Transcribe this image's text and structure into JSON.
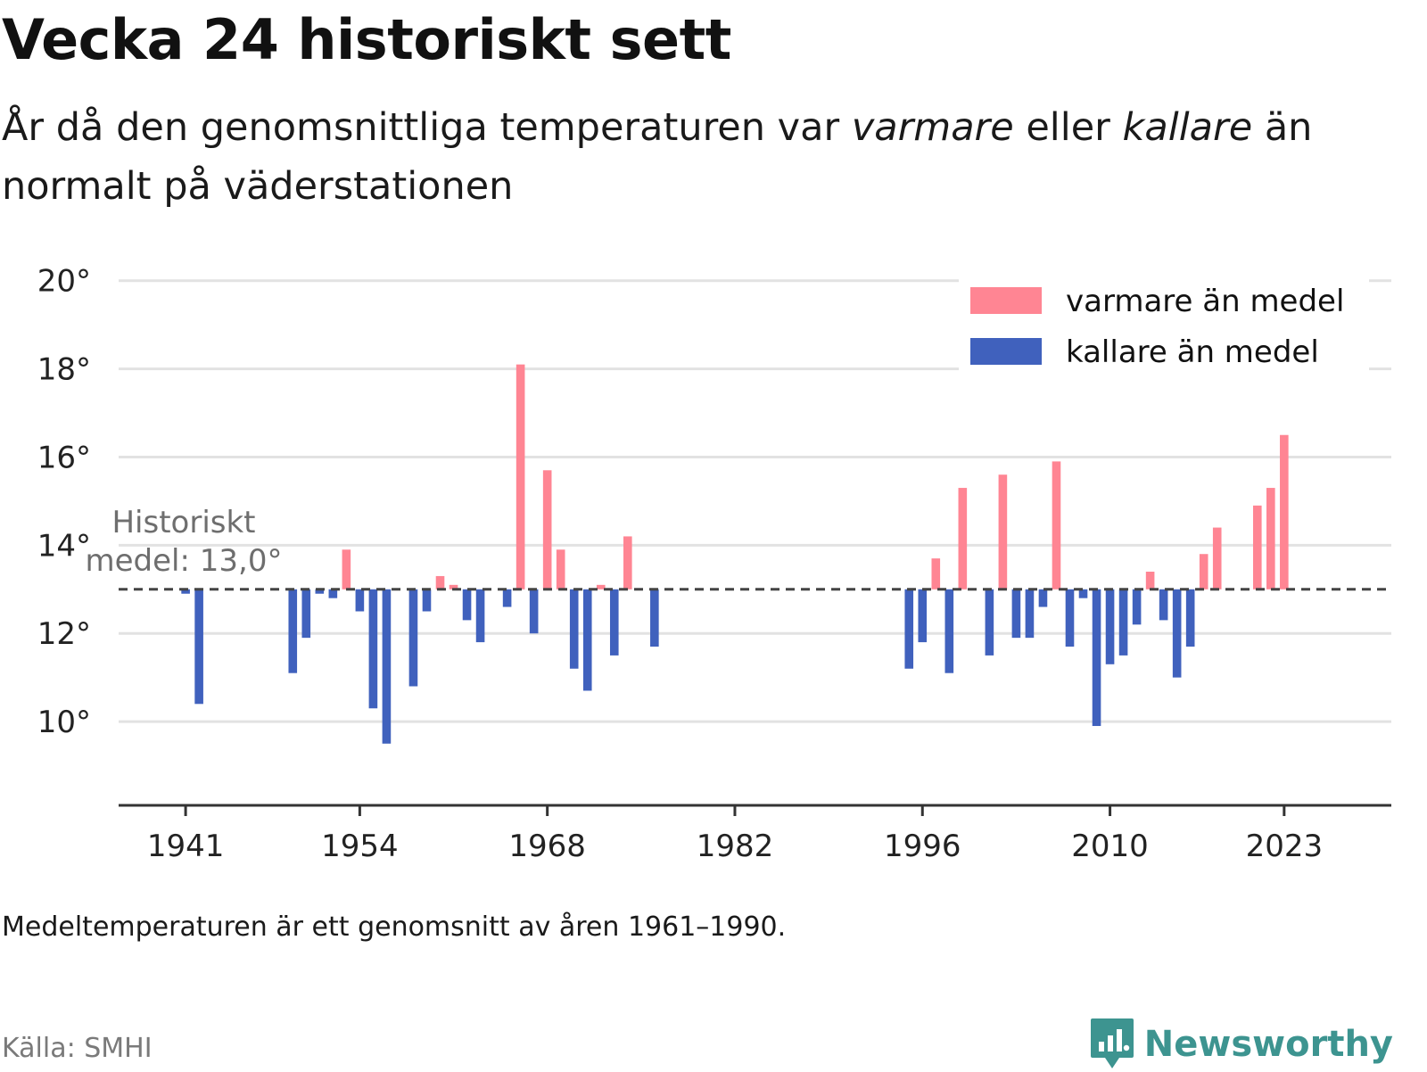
{
  "title": "Vecka 24 historiskt sett",
  "subtitle": {
    "part1": "År då den genomsnittliga temperaturen var ",
    "warm_word": "varmare",
    "part2": " eller ",
    "cold_word": "kallare",
    "part3": " än normalt på väderstationen"
  },
  "footnote": "Medeltemperaturen är ett genomsnitt av åren 1961–1990.",
  "source": "Källa: SMHI",
  "brand": {
    "name": "Newsworthy",
    "color": "#3d9490",
    "icon": "newsworthy-logo-icon"
  },
  "chart_data": {
    "type": "bar",
    "baseline": 13.0,
    "baseline_label_line1": "Historiskt",
    "baseline_label_line2": "medel: 13,0°",
    "xlim": [
      1936,
      2031
    ],
    "ylim": [
      8.1,
      20.5
    ],
    "y_ticks": [
      10,
      12,
      14,
      16,
      18,
      20
    ],
    "y_tick_suffix": "°",
    "x_ticks": [
      1941,
      1954,
      1968,
      1982,
      1996,
      2010,
      2023
    ],
    "grid": true,
    "legend_position": "top-right",
    "colors": {
      "warm": "#ff8593",
      "cold": "#4061bd",
      "baseline": "#444444",
      "grid": "#e2e2e2",
      "axis": "#333333"
    },
    "legend": [
      {
        "key": "warm",
        "label": "varmare än medel"
      },
      {
        "key": "cold",
        "label": "kallare än medel"
      }
    ],
    "points": [
      {
        "year": 1941,
        "value": 12.9
      },
      {
        "year": 1942,
        "value": 10.4
      },
      {
        "year": 1949,
        "value": 11.1
      },
      {
        "year": 1950,
        "value": 11.9
      },
      {
        "year": 1951,
        "value": 12.9
      },
      {
        "year": 1952,
        "value": 12.8
      },
      {
        "year": 1953,
        "value": 13.9
      },
      {
        "year": 1954,
        "value": 12.5
      },
      {
        "year": 1955,
        "value": 10.3
      },
      {
        "year": 1956,
        "value": 9.5
      },
      {
        "year": 1958,
        "value": 10.8
      },
      {
        "year": 1959,
        "value": 12.5
      },
      {
        "year": 1960,
        "value": 13.3
      },
      {
        "year": 1961,
        "value": 13.1
      },
      {
        "year": 1962,
        "value": 12.3
      },
      {
        "year": 1963,
        "value": 11.8
      },
      {
        "year": 1965,
        "value": 12.6
      },
      {
        "year": 1966,
        "value": 18.1
      },
      {
        "year": 1967,
        "value": 12.0
      },
      {
        "year": 1968,
        "value": 15.7
      },
      {
        "year": 1969,
        "value": 13.9
      },
      {
        "year": 1970,
        "value": 11.2
      },
      {
        "year": 1971,
        "value": 10.7
      },
      {
        "year": 1972,
        "value": 13.1
      },
      {
        "year": 1973,
        "value": 11.5
      },
      {
        "year": 1974,
        "value": 14.2
      },
      {
        "year": 1976,
        "value": 11.7
      },
      {
        "year": 1995,
        "value": 11.2
      },
      {
        "year": 1996,
        "value": 11.8
      },
      {
        "year": 1997,
        "value": 13.7
      },
      {
        "year": 1998,
        "value": 11.1
      },
      {
        "year": 1999,
        "value": 15.3
      },
      {
        "year": 2001,
        "value": 11.5
      },
      {
        "year": 2002,
        "value": 15.6
      },
      {
        "year": 2003,
        "value": 11.9
      },
      {
        "year": 2004,
        "value": 11.9
      },
      {
        "year": 2005,
        "value": 12.6
      },
      {
        "year": 2006,
        "value": 15.9
      },
      {
        "year": 2007,
        "value": 11.7
      },
      {
        "year": 2008,
        "value": 12.8
      },
      {
        "year": 2009,
        "value": 9.9
      },
      {
        "year": 2010,
        "value": 11.3
      },
      {
        "year": 2011,
        "value": 11.5
      },
      {
        "year": 2012,
        "value": 12.2
      },
      {
        "year": 2013,
        "value": 13.4
      },
      {
        "year": 2014,
        "value": 12.3
      },
      {
        "year": 2015,
        "value": 11.0
      },
      {
        "year": 2016,
        "value": 11.7
      },
      {
        "year": 2017,
        "value": 13.8
      },
      {
        "year": 2018,
        "value": 14.4
      },
      {
        "year": 2021,
        "value": 14.9
      },
      {
        "year": 2022,
        "value": 15.3
      },
      {
        "year": 2023,
        "value": 16.5
      }
    ]
  }
}
